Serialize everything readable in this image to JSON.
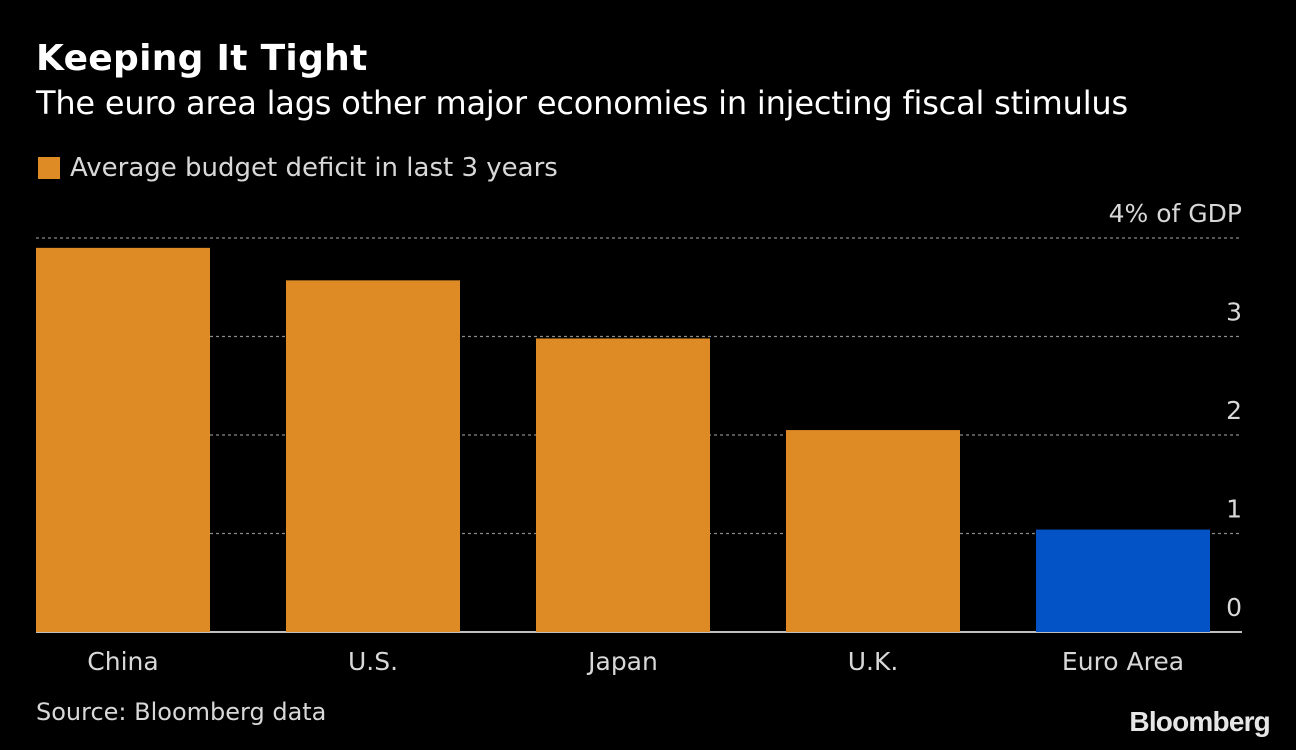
{
  "header": {
    "title": "Keeping It Tight",
    "subtitle": "The euro area lags other major economies in injecting fiscal stimulus"
  },
  "legend": {
    "label": "Average budget deficit in last 3 years",
    "color": "#de8b26"
  },
  "footer": {
    "source": "Source: Bloomberg data",
    "logo": "Bloomberg"
  },
  "chart_data": {
    "type": "bar",
    "categories": [
      "China",
      "U.S.",
      "Japan",
      "U.K.",
      "Euro Area"
    ],
    "series": [
      {
        "name": "Average budget deficit in last 3 years",
        "values": [
          3.9,
          3.57,
          2.98,
          2.05,
          1.04
        ]
      }
    ],
    "bar_colors": [
      "#de8b26",
      "#de8b26",
      "#de8b26",
      "#de8b26",
      "#0353c6"
    ],
    "ylim": [
      0,
      4
    ],
    "y_ticks": [
      {
        "value": 0,
        "label": "0"
      },
      {
        "value": 1,
        "label": "1"
      },
      {
        "value": 2,
        "label": "2"
      },
      {
        "value": 3,
        "label": "3"
      },
      {
        "value": 4,
        "label": "4% of GDP"
      }
    ],
    "grid": true,
    "axis_side": "right",
    "legend_position": "top-left"
  }
}
